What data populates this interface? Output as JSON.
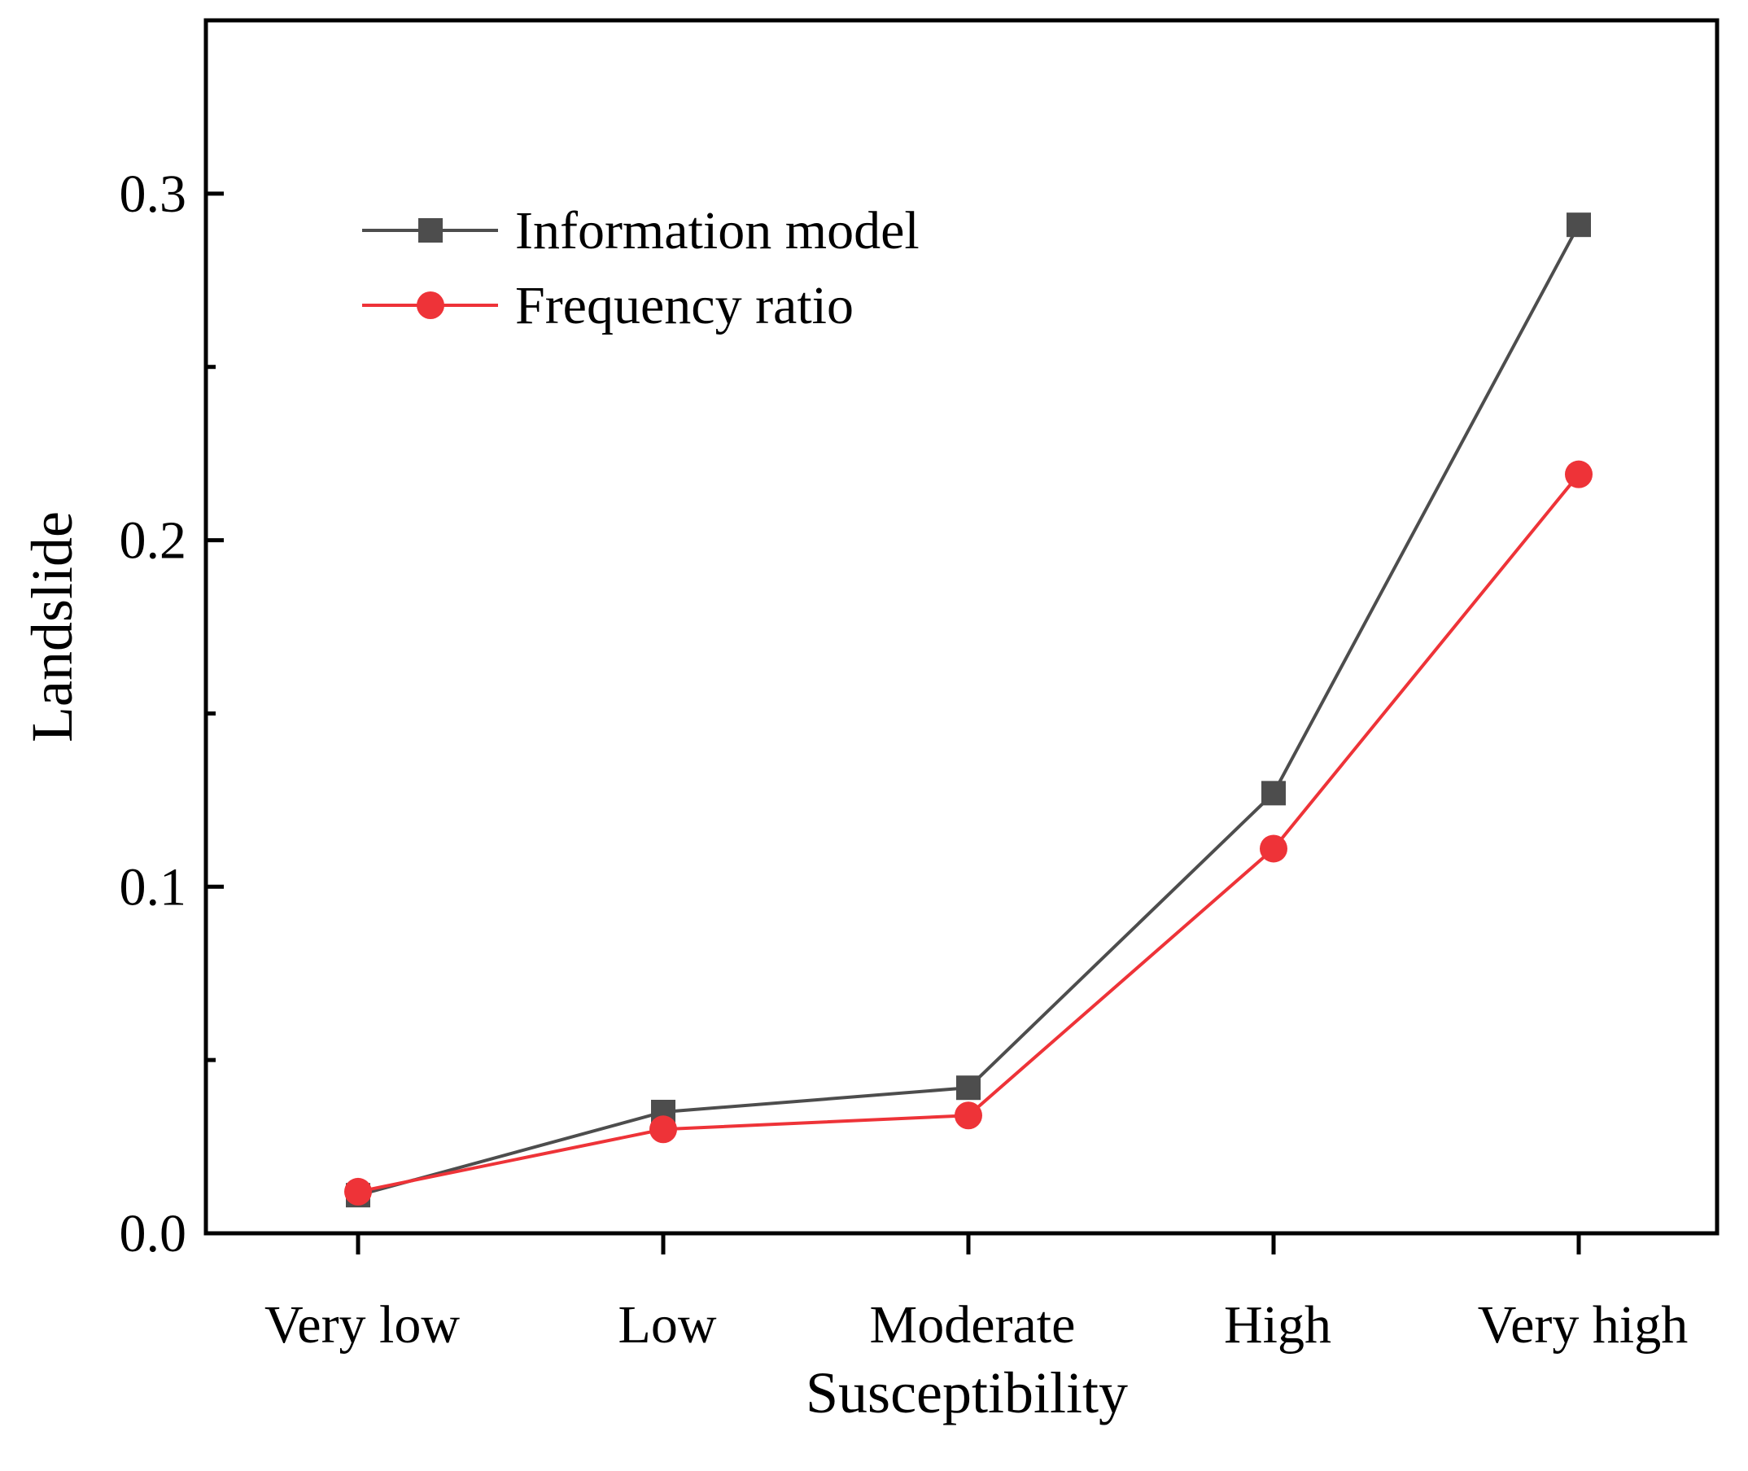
{
  "chart_data": {
    "type": "line",
    "categories": [
      "Very low",
      "Low",
      "Moderate",
      "High",
      "Very high"
    ],
    "series": [
      {
        "name": "Information model",
        "values": [
          0.011,
          0.035,
          0.042,
          0.127,
          0.291
        ],
        "color": "#4d4d4d",
        "marker": "square"
      },
      {
        "name": "Frequency ratio",
        "values": [
          0.012,
          0.03,
          0.034,
          0.111,
          0.219
        ],
        "color": "#ee3338",
        "marker": "circle"
      }
    ],
    "xlabel": "Susceptibility",
    "ylabel": "Landslide",
    "ylim": [
      0.0,
      0.35
    ],
    "yticks": [
      0.0,
      0.1,
      0.2,
      0.3
    ],
    "ytick_labels": [
      "0.0",
      "0.1",
      "0.2",
      "0.3"
    ],
    "grid": false,
    "legend_position": "top-left"
  }
}
